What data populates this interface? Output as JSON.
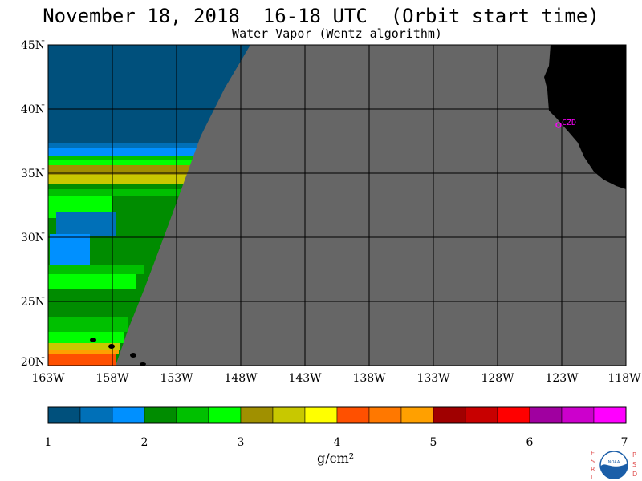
{
  "header": {
    "title": "November 18, 2018  16-18 UTC  (Orbit start time)",
    "subtitle": "Water Vapor (Wentz algorithm)"
  },
  "map": {
    "lat_labels": [
      "45N",
      "40N",
      "35N",
      "30N",
      "25N",
      "20N"
    ],
    "lon_labels": [
      "163W",
      "158W",
      "153W",
      "148W",
      "143W",
      "138W",
      "133W",
      "128W",
      "123W",
      "118W"
    ],
    "station_label": "CZD",
    "colors": {
      "no_data": "#666666",
      "land": "#000000",
      "grid": "#000000",
      "station": "#ff00ff"
    }
  },
  "colorbar": {
    "tick_labels": [
      "1",
      "2",
      "3",
      "4",
      "5",
      "6",
      "7"
    ],
    "unit": "g/cm²",
    "colors": [
      "#00507c",
      "#0070b8",
      "#0090ff",
      "#008c00",
      "#00c000",
      "#00ff00",
      "#a09000",
      "#c8c800",
      "#ffff00",
      "#ff5000",
      "#ff7800",
      "#ffa000",
      "#a00000",
      "#c80000",
      "#ff0000",
      "#a000a0",
      "#cc00cc",
      "#ff00ff"
    ]
  },
  "logo": {
    "left_letters": [
      "E",
      "S",
      "R",
      "L"
    ],
    "right_letters": [
      "P",
      "S",
      "D"
    ],
    "name": "NOAA"
  }
}
